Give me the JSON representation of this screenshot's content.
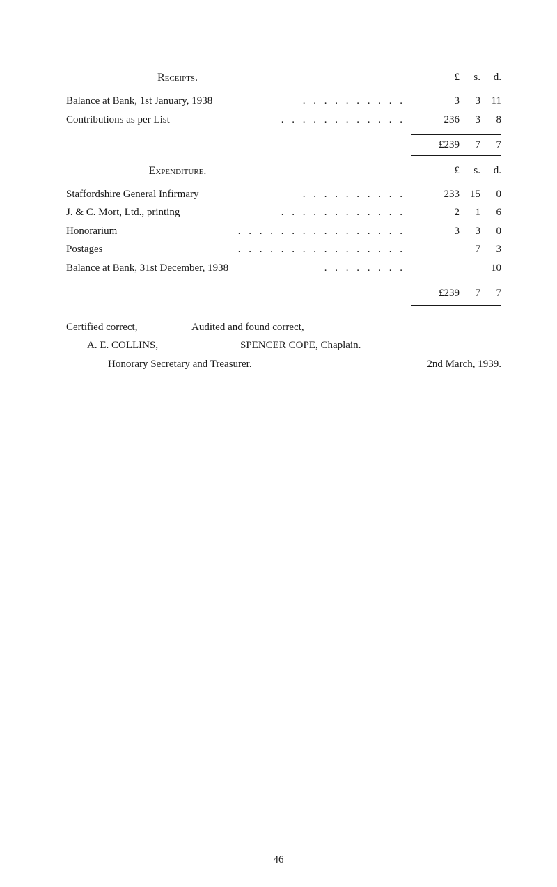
{
  "receipts": {
    "heading": "Receipts.",
    "currency_header": {
      "pounds": "£",
      "shillings": "s.",
      "pence": "d."
    },
    "items": [
      {
        "desc": "Balance at Bank, 1st January, 1938",
        "dots": ". .   . .   . .   . .   . .",
        "pounds": "3",
        "shillings": "3",
        "pence": "11"
      },
      {
        "desc": "Contributions as per List",
        "dots": ". .   . .   . .   . .   . .   . .",
        "pounds": "236",
        "shillings": "3",
        "pence": "8"
      }
    ],
    "total": {
      "pounds": "£239",
      "shillings": "7",
      "pence": "7"
    }
  },
  "expenditure": {
    "heading": "Expenditure.",
    "currency_header": {
      "pounds": "£",
      "shillings": "s.",
      "pence": "d."
    },
    "items": [
      {
        "desc": "Staffordshire General Infirmary",
        "dots": ". .   . .   . .   . .   . .",
        "pounds": "233",
        "shillings": "15",
        "pence": "0"
      },
      {
        "desc": "J. & C. Mort, Ltd., printing",
        "dots": ". .   . .   . .   . .   . .   . .",
        "pounds": "2",
        "shillings": "1",
        "pence": "6"
      },
      {
        "desc": "Honorarium",
        "dots": ". .   . .   . .   . .   . .   . .   . .   . .",
        "pounds": "3",
        "shillings": "3",
        "pence": "0"
      },
      {
        "desc": "Postages",
        "dots": ". .   . .   . .   . .   . .   . .   . .   . .",
        "pounds": "",
        "shillings": "7",
        "pence": "3"
      },
      {
        "desc": "Balance at Bank, 31st December, 1938",
        "dots": ". .   . .   . .   . .",
        "pounds": "",
        "shillings": "",
        "pence": "10"
      }
    ],
    "total": {
      "pounds": "£239",
      "shillings": "7",
      "pence": "7"
    }
  },
  "certification": {
    "cert_correct": "Certified correct,",
    "audited": "Audited and found correct,",
    "name_left": "A. E. COLLINS,",
    "name_right": "SPENCER COPE, Chaplain.",
    "title_left": "Honorary Secretary and Treasurer.",
    "date": "2nd March, 1939."
  },
  "page_number": "46"
}
